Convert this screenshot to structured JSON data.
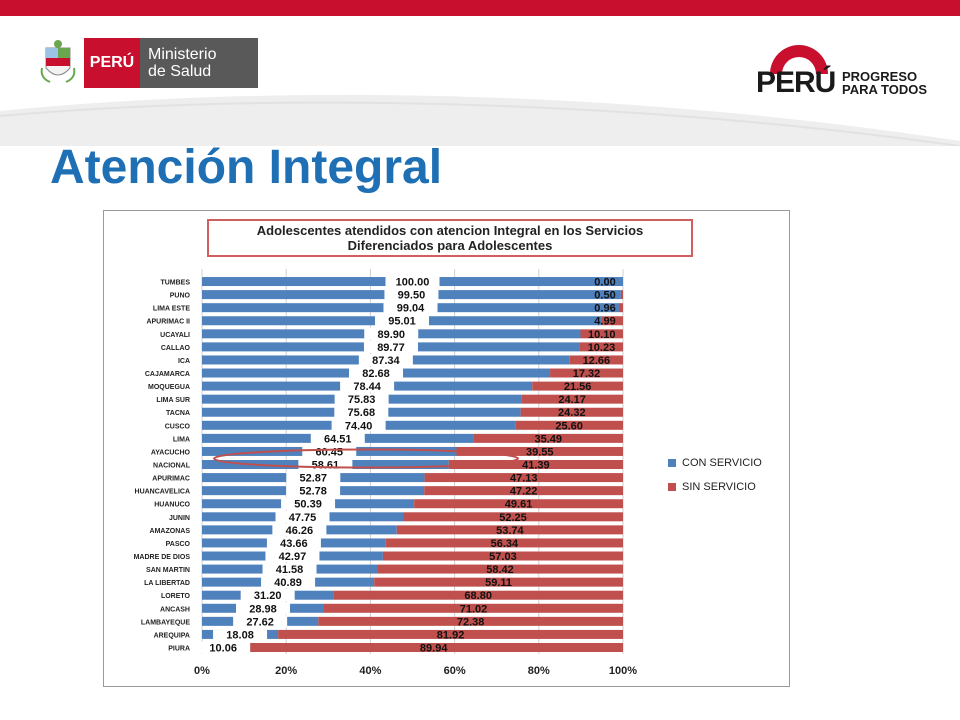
{
  "header": {
    "minsa_country": "PERÚ",
    "minsa_name_line1": "Ministerio",
    "minsa_name_line2": "de Salud",
    "brand_country": "PERÚ",
    "brand_slogan_line1": "PROGRESO",
    "brand_slogan_line2": "PARA TODOS"
  },
  "page": {
    "title": "Atención Integral"
  },
  "colors": {
    "con_servicio": "#4f81bd",
    "sin_servicio": "#c0504d",
    "title_blue": "#1f6fb5",
    "top_bar": "#c8102e"
  },
  "chart_data": {
    "type": "bar",
    "orientation": "horizontal",
    "stacked": "percent",
    "title_line1": "Adolescentes atendidos con atencion Integral en los Servicios",
    "title_line2": "Diferenciados para Adolescentes",
    "categories": [
      "TUMBES",
      "PUNO",
      "LIMA ESTE",
      "APURIMAC II",
      "UCAYALI",
      "CALLAO",
      "ICA",
      "CAJAMARCA",
      "MOQUEGUA",
      "LIMA SUR",
      "TACNA",
      "CUSCO",
      "LIMA",
      "AYACUCHO",
      "NACIONAL",
      "APURIMAC",
      "HUANCAVELICA",
      "HUANUCO",
      "JUNIN",
      "AMAZONAS",
      "PASCO",
      "MADRE DE DIOS",
      "SAN MARTIN",
      "LA LIBERTAD",
      "LORETO",
      "ANCASH",
      "LAMBAYEQUE",
      "AREQUIPA",
      "PIURA"
    ],
    "series": [
      {
        "name": "CON SERVICIO",
        "values": [
          100.0,
          99.5,
          99.04,
          95.01,
          89.9,
          89.77,
          87.34,
          82.68,
          78.44,
          75.83,
          75.68,
          74.4,
          64.51,
          60.45,
          58.61,
          52.87,
          52.78,
          50.39,
          47.75,
          46.26,
          43.66,
          42.97,
          41.58,
          40.89,
          31.2,
          28.98,
          27.62,
          18.08,
          10.06
        ]
      },
      {
        "name": "SIN SERVICIO",
        "values": [
          0.0,
          0.5,
          0.96,
          4.99,
          10.1,
          10.23,
          12.66,
          17.32,
          21.56,
          24.17,
          24.32,
          25.6,
          35.49,
          39.55,
          41.39,
          47.13,
          47.22,
          49.61,
          52.25,
          53.74,
          56.34,
          57.03,
          58.42,
          59.11,
          68.8,
          71.02,
          72.38,
          81.92,
          89.94
        ]
      }
    ],
    "x_ticks": [
      "0%",
      "20%",
      "40%",
      "60%",
      "80%",
      "100%"
    ],
    "xlim": [
      0,
      100
    ],
    "legend_position": "right",
    "highlighted_category": "NACIONAL"
  }
}
